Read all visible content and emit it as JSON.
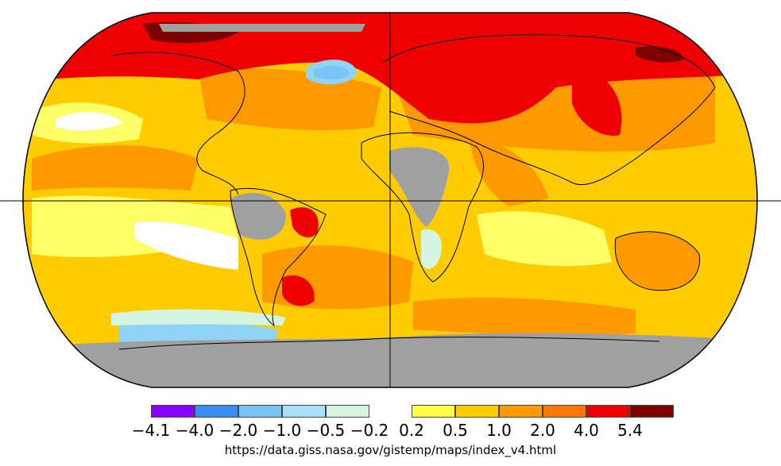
{
  "map": {
    "projection": "robinson",
    "grid_lines": [
      "equator",
      "prime-meridian"
    ],
    "missing_data_color": "#a0a0a0",
    "regions": [
      {
        "name": "arctic-band",
        "color": "#ee0000"
      },
      {
        "name": "greenland-cold-spot",
        "color": "#8fd3f5"
      },
      {
        "name": "siberia-hot-spot",
        "color": "#7f0000"
      },
      {
        "name": "antarctica-no-data",
        "color": "#a0a0a0"
      },
      {
        "name": "africa-no-data",
        "color": "#a0a0a0"
      },
      {
        "name": "southern-ocean-cool",
        "color": "#8fd3f5"
      }
    ]
  },
  "legend": {
    "colors": [
      "#8a00ff",
      "#3a8cf0",
      "#78c4f5",
      "#a9e2f7",
      "#d5f5e3",
      "#ffff44",
      "#ffcc00",
      "#ff9900",
      "#ff7700",
      "#ee0000",
      "#7f0000"
    ],
    "ticks": [
      "−4.1",
      "−4.0",
      "−2.0",
      "−1.0",
      "−0.5",
      "−0.2",
      "0.2",
      "0.5",
      "1.0",
      "2.0",
      "4.0",
      "5.4"
    ]
  },
  "source_url": "https://data.giss.nasa.gov/gistemp/maps/index_v4.html"
}
